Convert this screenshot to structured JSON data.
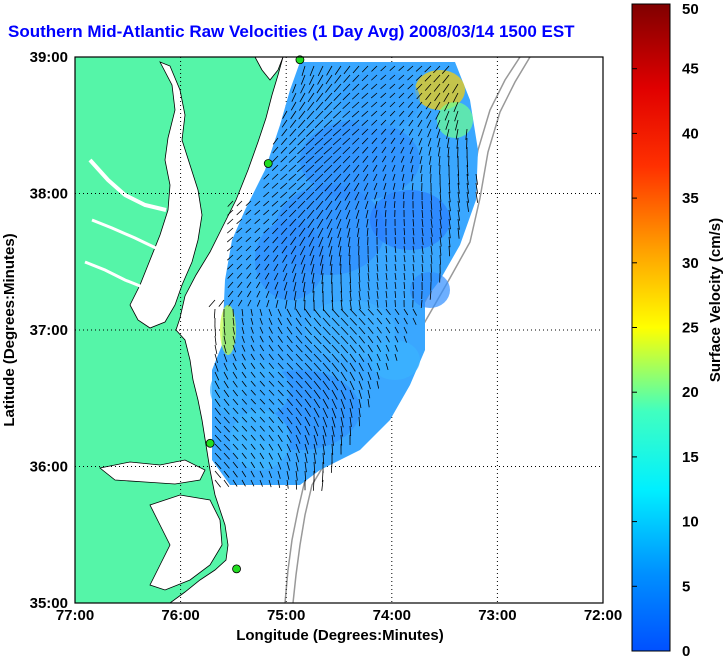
{
  "title": "Southern Mid-Atlantic Raw Velocities (1 Day Avg) 2008/03/14 1500 EST",
  "map": {
    "lon_range": [
      -77,
      -72
    ],
    "lat_range": [
      35,
      39
    ],
    "x_ticks": [
      "77:00",
      "76:00",
      "75:00",
      "74:00",
      "73:00",
      "72:00"
    ],
    "y_ticks": [
      "39:00",
      "38:00",
      "37:00",
      "36:00",
      "35:00"
    ],
    "x_label": "Longitude (Degrees:Minutes)",
    "y_label": "Latitude (Degrees:Minutes)",
    "grid": "dotted",
    "land_color": "#55f5a8",
    "water_color": "#ffffff",
    "station_color": "#22dd22",
    "stations": [
      {
        "lon": -74.87,
        "lat": 38.98
      },
      {
        "lon": -75.17,
        "lat": 38.22
      },
      {
        "lon": -75.72,
        "lat": 36.17
      },
      {
        "lon": -75.47,
        "lat": 35.25
      }
    ]
  },
  "colorbar": {
    "label": "Surface Velocity (cm/s)",
    "min": 0,
    "max": 50,
    "ticks": [
      "0",
      "5",
      "10",
      "15",
      "20",
      "25",
      "30",
      "35",
      "40",
      "45",
      "50"
    ],
    "colormap": "jet"
  }
}
